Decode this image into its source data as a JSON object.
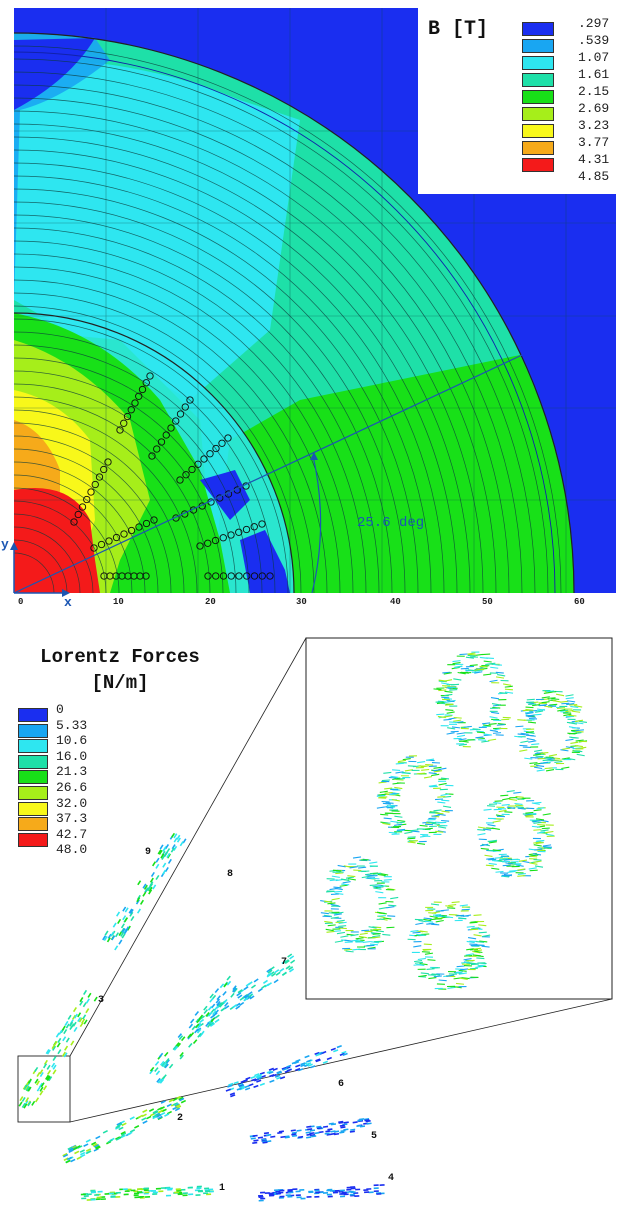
{
  "field_map": {
    "legend_title": "B [T]",
    "legend": [
      {
        "label": ".297",
        "color": "#1a2ef0"
      },
      {
        "label": ".539",
        "color": "#19a6f2"
      },
      {
        "label": "1.07",
        "color": "#2ee6f0"
      },
      {
        "label": "1.61",
        "color": "#1ee0a8"
      },
      {
        "label": "2.15",
        "color": "#18e018"
      },
      {
        "label": "2.69",
        "color": "#a6ee1a"
      },
      {
        "label": "3.23",
        "color": "#f8f81a"
      },
      {
        "label": "3.77",
        "color": "#f6aa1a"
      },
      {
        "label": "4.31",
        "color": "#f41a1a"
      },
      {
        "label": "4.85",
        "color": ""
      }
    ],
    "x_ticks": [
      "0",
      "10",
      "20",
      "30",
      "40",
      "50",
      "60"
    ],
    "x_axis": "x",
    "y_axis": "y",
    "angle_label": "25.6 deg"
  },
  "forces": {
    "title_line1": "Lorentz Forces",
    "title_line2": "[N/m]",
    "legend": [
      {
        "label": "0",
        "color": "#1a2ef0"
      },
      {
        "label": "5.33",
        "color": "#19a6f2"
      },
      {
        "label": "10.6",
        "color": "#2ee6f0"
      },
      {
        "label": "16.0",
        "color": "#1ee0a8"
      },
      {
        "label": "21.3",
        "color": "#18e018"
      },
      {
        "label": "26.6",
        "color": "#a6ee1a"
      },
      {
        "label": "32.0",
        "color": "#f8f81a"
      },
      {
        "label": "37.3",
        "color": "#f6aa1a"
      },
      {
        "label": "42.7",
        "color": "#f41a1a"
      },
      {
        "label": "48.0",
        "color": ""
      }
    ],
    "block_labels": [
      "1",
      "2",
      "3",
      "4",
      "5",
      "6",
      "7",
      "8",
      "9"
    ]
  }
}
